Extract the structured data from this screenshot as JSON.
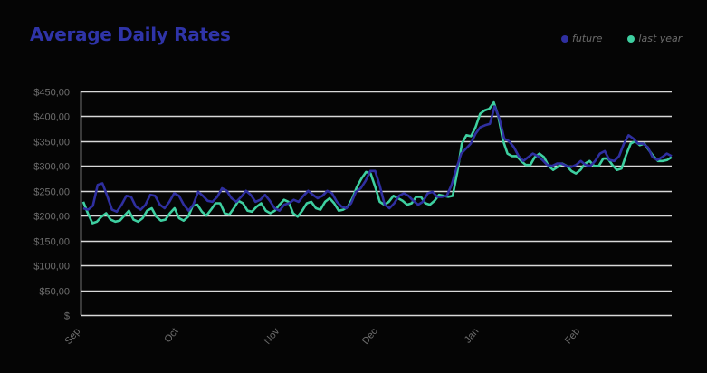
{
  "title": "Average Daily Rates",
  "legend": [
    {
      "label": "future",
      "color": "#2f2fa0"
    },
    {
      "label": "last year",
      "color": "#3ecfa0"
    }
  ],
  "chart_data": {
    "type": "line",
    "title": "Average Daily Rates",
    "xlabel": "",
    "ylabel": "",
    "ylim": [
      0,
      450
    ],
    "yticks": [
      "$",
      "$50,00",
      "$100,00",
      "$150,00",
      "$200,00",
      "$250,00",
      "$300,00",
      "$350,00",
      "$400,00",
      "$450,00"
    ],
    "ytick_values": [
      0,
      50,
      100,
      150,
      200,
      250,
      300,
      350,
      400,
      450
    ],
    "xticks": [
      "Sep",
      "Oct",
      "Nov",
      "Dec",
      "Jan",
      "Feb"
    ],
    "xtick_positions": [
      0,
      30,
      61,
      91,
      122,
      153
    ],
    "x_days": 181,
    "grid": true,
    "legend_position": "top-right",
    "series": [
      {
        "name": "future",
        "color": "#2f2fa0",
        "values": [
          215,
          212,
          220,
          262,
          265,
          240,
          212,
          208,
          222,
          240,
          238,
          218,
          212,
          222,
          242,
          240,
          222,
          215,
          228,
          245,
          240,
          222,
          210,
          222,
          248,
          240,
          230,
          228,
          238,
          255,
          250,
          235,
          228,
          238,
          250,
          242,
          228,
          232,
          242,
          230,
          215,
          210,
          222,
          225,
          232,
          228,
          240,
          250,
          242,
          235,
          240,
          250,
          245,
          228,
          218,
          215,
          225,
          248,
          255,
          270,
          290,
          290,
          260,
          222,
          215,
          225,
          240,
          245,
          240,
          230,
          222,
          228,
          245,
          248,
          238,
          238,
          240,
          262,
          295,
          325,
          335,
          345,
          365,
          378,
          382,
          385,
          420,
          395,
          355,
          350,
          338,
          320,
          310,
          318,
          325,
          320,
          312,
          302,
          300,
          305,
          305,
          300,
          298,
          302,
          310,
          302,
          300,
          310,
          325,
          330,
          312,
          310,
          320,
          345,
          362,
          355,
          345,
          345,
          338,
          318,
          312,
          318,
          325,
          320
        ]
      },
      {
        "name": "last year",
        "color": "#3ecfa0",
        "values": [
          228,
          205,
          185,
          188,
          198,
          205,
          192,
          188,
          190,
          200,
          210,
          192,
          188,
          195,
          210,
          215,
          198,
          190,
          192,
          205,
          215,
          195,
          190,
          198,
          220,
          222,
          208,
          200,
          212,
          225,
          225,
          205,
          202,
          215,
          230,
          225,
          210,
          208,
          218,
          225,
          210,
          205,
          210,
          222,
          232,
          228,
          205,
          198,
          210,
          225,
          228,
          215,
          212,
          228,
          235,
          225,
          210,
          212,
          218,
          235,
          258,
          275,
          288,
          285,
          258,
          228,
          222,
          228,
          240,
          235,
          230,
          222,
          225,
          238,
          238,
          225,
          222,
          230,
          242,
          240,
          238,
          240,
          288,
          345,
          362,
          360,
          378,
          405,
          412,
          415,
          428,
          400,
          352,
          325,
          320,
          320,
          310,
          302,
          302,
          318,
          325,
          318,
          300,
          292,
          298,
          305,
          300,
          290,
          285,
          292,
          305,
          310,
          300,
          300,
          315,
          315,
          302,
          292,
          295,
          322,
          345,
          350,
          342,
          345,
          332,
          320,
          310,
          310,
          312,
          318
        ]
      }
    ]
  }
}
